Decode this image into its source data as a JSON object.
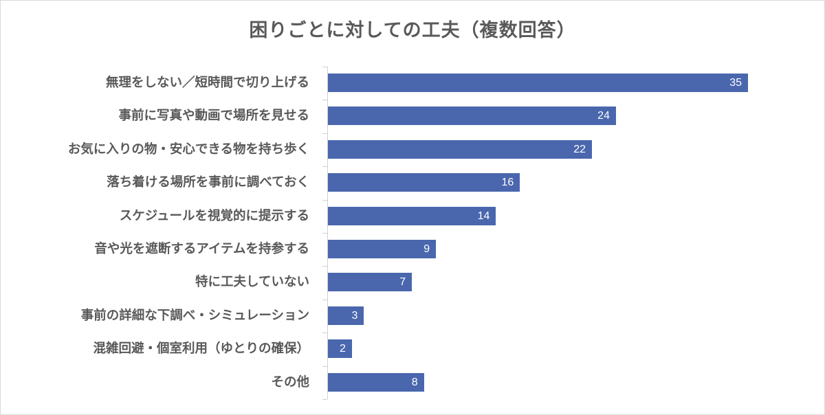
{
  "chart_data": {
    "type": "bar",
    "orientation": "horizontal",
    "title": "困りごとに対しての工夫（複数回答）",
    "xlabel": "",
    "ylabel": "",
    "categories": [
      "無理をしない／短時間で切り上げる",
      "事前に写真や動画で場所を見せる",
      "お気に入りの物・安心できる物を持ち歩く",
      "落ち着ける場所を事前に調べておく",
      "スケジュールを視覚的に提示する",
      "音や光を遮断するアイテムを持参する",
      "特に工夫していない",
      "事前の詳細な下調べ・シミュレーション",
      "混雑回避・個室利用（ゆとりの確保）",
      "その他"
    ],
    "values": [
      35,
      24,
      22,
      16,
      14,
      9,
      7,
      3,
      2,
      8
    ],
    "xlim": [
      0,
      35
    ],
    "grid": false,
    "legend": "none",
    "data_labels": true,
    "bar_color": "#4a67ae",
    "label_color": "#595959"
  }
}
